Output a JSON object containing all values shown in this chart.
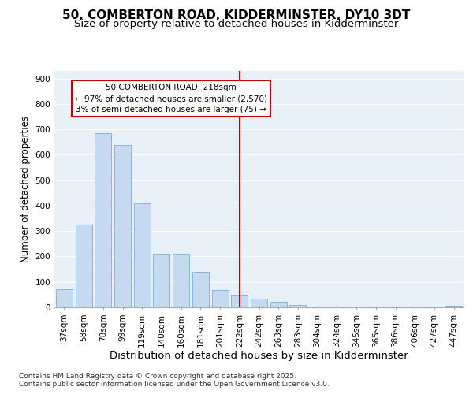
{
  "title": "50, COMBERTON ROAD, KIDDERMINSTER, DY10 3DT",
  "subtitle": "Size of property relative to detached houses in Kidderminster",
  "xlabel": "Distribution of detached houses by size in Kidderminster",
  "ylabel": "Number of detached properties",
  "categories": [
    "37sqm",
    "58sqm",
    "78sqm",
    "99sqm",
    "119sqm",
    "140sqm",
    "160sqm",
    "181sqm",
    "201sqm",
    "222sqm",
    "242sqm",
    "263sqm",
    "283sqm",
    "304sqm",
    "324sqm",
    "345sqm",
    "365sqm",
    "386sqm",
    "406sqm",
    "427sqm",
    "447sqm"
  ],
  "values": [
    72,
    325,
    685,
    640,
    410,
    210,
    210,
    138,
    68,
    50,
    35,
    22,
    10,
    0,
    0,
    0,
    0,
    0,
    0,
    0,
    5
  ],
  "bar_color": "#c5d9f0",
  "bar_edge_color": "#7bafd4",
  "background_color": "#ffffff",
  "plot_bg_color": "#e8f0f8",
  "grid_color": "#ffffff",
  "vline_x": 9,
  "vline_color": "#cc0000",
  "annotation_title": "50 COMBERTON ROAD: 218sqm",
  "annotation_line1": "← 97% of detached houses are smaller (2,570)",
  "annotation_line2": "3% of semi-detached houses are larger (75) →",
  "annotation_box_color": "#ffffff",
  "annotation_border_color": "#cc0000",
  "ylim": [
    0,
    930
  ],
  "yticks": [
    0,
    100,
    200,
    300,
    400,
    500,
    600,
    700,
    800,
    900
  ],
  "footer_line1": "Contains HM Land Registry data © Crown copyright and database right 2025.",
  "footer_line2": "Contains public sector information licensed under the Open Government Licence v3.0.",
  "title_fontsize": 11,
  "subtitle_fontsize": 9.5,
  "xlabel_fontsize": 9.5,
  "ylabel_fontsize": 8.5,
  "tick_fontsize": 7.5,
  "annotation_fontsize": 7.5,
  "footer_fontsize": 6.5
}
